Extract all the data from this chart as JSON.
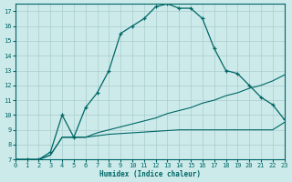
{
  "xlabel": "Humidex (Indice chaleur)",
  "bg_color": "#cceaea",
  "grid_color": "#aacccc",
  "line_color": "#006666",
  "xlim": [
    0,
    23
  ],
  "ylim": [
    7,
    17.5
  ],
  "yticks": [
    7,
    8,
    9,
    10,
    11,
    12,
    13,
    14,
    15,
    16,
    17
  ],
  "xticks": [
    0,
    1,
    2,
    3,
    4,
    5,
    6,
    7,
    8,
    9,
    10,
    11,
    12,
    13,
    14,
    15,
    16,
    17,
    18,
    19,
    20,
    21,
    22,
    23
  ],
  "curve_x": [
    0,
    1,
    2,
    3,
    4,
    5,
    6,
    7,
    8,
    9,
    10,
    11,
    12,
    13,
    14,
    15,
    16,
    17,
    18,
    19,
    20,
    21,
    22,
    23
  ],
  "curve_y": [
    7,
    7,
    7,
    7.5,
    10,
    8.5,
    10.5,
    11.5,
    13,
    15.5,
    16,
    16.5,
    17.3,
    17.5,
    17.2,
    17.2,
    16.5,
    14.5,
    13.0,
    12.8,
    12.0,
    11.2,
    10.7,
    9.7
  ],
  "line1_x": [
    0,
    1,
    2,
    3,
    4,
    5,
    6,
    7,
    8,
    9,
    10,
    11,
    12,
    13,
    14,
    15,
    16,
    17,
    18,
    19,
    20,
    21,
    22,
    23
  ],
  "line1_y": [
    7.0,
    7.0,
    7.0,
    7.3,
    8.5,
    8.5,
    8.5,
    8.6,
    8.7,
    8.75,
    8.8,
    8.85,
    8.9,
    8.95,
    9.0,
    9.0,
    9.0,
    9.0,
    9.0,
    9.0,
    9.0,
    9.0,
    9.0,
    9.5
  ],
  "line2_x": [
    0,
    1,
    2,
    3,
    4,
    5,
    6,
    7,
    8,
    9,
    10,
    11,
    12,
    13,
    14,
    15,
    16,
    17,
    18,
    19,
    20,
    21,
    22,
    23
  ],
  "line2_y": [
    7.0,
    7.0,
    7.0,
    7.3,
    8.5,
    8.5,
    8.5,
    8.8,
    9.0,
    9.2,
    9.4,
    9.6,
    9.8,
    10.1,
    10.3,
    10.5,
    10.8,
    11.0,
    11.3,
    11.5,
    11.8,
    12.0,
    12.3,
    12.7
  ]
}
